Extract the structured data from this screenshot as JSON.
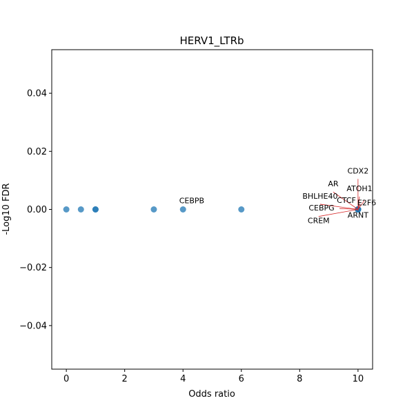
{
  "chart_data": {
    "type": "scatter",
    "title": "HERV1_LTRb",
    "xlabel": "Odds ratio",
    "ylabel": "-Log10 FDR",
    "xlim": [
      -0.5,
      10.5
    ],
    "ylim": [
      -0.055,
      0.055
    ],
    "xticks": [
      0,
      2,
      4,
      6,
      8,
      10
    ],
    "xtick_labels": [
      "0",
      "2",
      "4",
      "6",
      "8",
      "10"
    ],
    "yticks": [
      -0.04,
      -0.02,
      0.0,
      0.02,
      0.04
    ],
    "ytick_labels": [
      "−0.04",
      "−0.02",
      "0.00",
      "0.02",
      "0.04"
    ],
    "grid": false,
    "point_color": "#1f77b4",
    "annotation_line_color": "#d62728",
    "points": [
      {
        "x": 0,
        "y": 0
      },
      {
        "x": 0.5,
        "y": 0
      },
      {
        "x": 1,
        "y": 0
      },
      {
        "x": 1,
        "y": 0
      },
      {
        "x": 3,
        "y": 0
      },
      {
        "x": 4,
        "y": 0
      },
      {
        "x": 6,
        "y": 0
      },
      {
        "x": 10,
        "y": 0
      },
      {
        "x": 10,
        "y": 0
      },
      {
        "x": 10,
        "y": 0
      },
      {
        "x": 10,
        "y": 0
      },
      {
        "x": 10,
        "y": 0
      },
      {
        "x": 10,
        "y": 0
      },
      {
        "x": 10,
        "y": 0
      },
      {
        "x": 10,
        "y": 0
      },
      {
        "x": 10,
        "y": 0
      }
    ],
    "annotations": [
      {
        "label": "CEBPB",
        "x": 4,
        "y": 0,
        "tx": 4.3,
        "ty": 0.0021,
        "anchor": "middle",
        "leader": false
      },
      {
        "label": "CDX2",
        "x": 10,
        "y": 0,
        "tx": 10.0,
        "ty": 0.0124,
        "anchor": "middle",
        "leader": true
      },
      {
        "label": "AR",
        "x": 10,
        "y": 0,
        "tx": 9.15,
        "ty": 0.0079,
        "anchor": "middle",
        "leader": true
      },
      {
        "label": "ATOH1",
        "x": 10,
        "y": 0,
        "tx": 10.05,
        "ty": 0.0063,
        "anchor": "middle",
        "leader": true
      },
      {
        "label": "BHLHE40",
        "x": 10,
        "y": 0,
        "tx": 8.7,
        "ty": 0.0037,
        "anchor": "middle",
        "leader": true
      },
      {
        "label": "CTCF",
        "x": 10,
        "y": 0,
        "tx": 9.6,
        "ty": 0.0023,
        "anchor": "middle",
        "leader": true
      },
      {
        "label": "E2F6",
        "x": 10,
        "y": 0,
        "tx": 10.3,
        "ty": 0.0014,
        "anchor": "middle",
        "leader": true
      },
      {
        "label": "CEBPG",
        "x": 10,
        "y": 0,
        "tx": 8.75,
        "ty": -0.0004,
        "anchor": "middle",
        "leader": true
      },
      {
        "label": "ARNT",
        "x": 10,
        "y": 0,
        "tx": 10.0,
        "ty": -0.0029,
        "anchor": "middle",
        "leader": true
      },
      {
        "label": "CREM",
        "x": 10,
        "y": 0,
        "tx": 8.65,
        "ty": -0.0048,
        "anchor": "middle",
        "leader": true
      }
    ]
  }
}
